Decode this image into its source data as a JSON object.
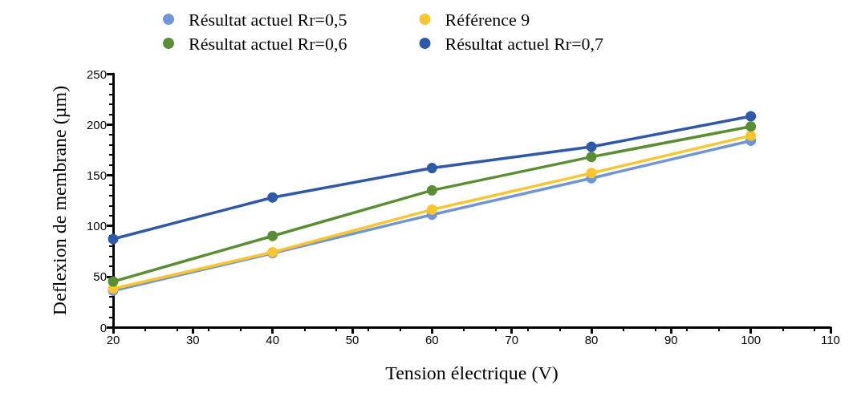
{
  "chart_data": {
    "type": "line",
    "xlabel": "Tension électrique (V)",
    "ylabel": "Deflexion de membrane (µm)",
    "x": [
      20,
      40,
      60,
      80,
      100
    ],
    "series": [
      {
        "name": "Résultat actuel Rr=0,5",
        "color": "#6f96d8",
        "values": [
          36,
          73,
          111,
          147,
          184
        ]
      },
      {
        "name": "Référence 9",
        "color": "#fbc52c",
        "values": [
          38,
          74,
          116,
          152,
          189
        ]
      },
      {
        "name": "Résultat actuel Rr=0,6",
        "color": "#5b8d33",
        "values": [
          45,
          90,
          135,
          168,
          198
        ]
      },
      {
        "name": "Résultat actuel Rr=0,7",
        "color": "#2e58a8",
        "values": [
          87,
          128,
          157,
          178,
          208
        ]
      }
    ],
    "xlim": [
      20,
      110
    ],
    "xticks": [
      20,
      30,
      40,
      50,
      60,
      70,
      80,
      90,
      100,
      110
    ],
    "ylim": [
      0,
      250
    ],
    "yticks": [
      0,
      50,
      100,
      150,
      200,
      250
    ],
    "grid": false,
    "legend": "top",
    "marker": "circle",
    "line_style": "solid"
  }
}
